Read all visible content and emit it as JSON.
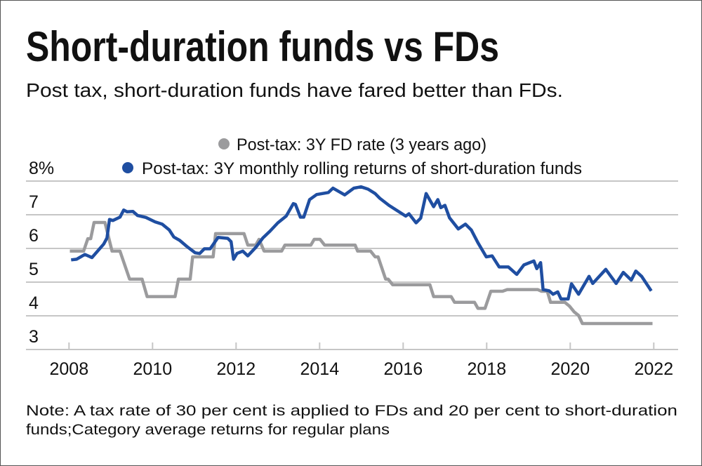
{
  "title": "Short-duration funds vs FDs",
  "subtitle": "Post tax, short-duration funds have fared better than FDs.",
  "note_line1": "Note: A tax rate of 30 per cent is applied to FDs and 20 per cent to short-duration",
  "note_line2": "funds;Category average returns for regular plans",
  "chart_data": {
    "type": "line",
    "title": "Short-duration funds vs FDs",
    "xlabel": "",
    "ylabel": "%",
    "xlim": [
      2008,
      2022
    ],
    "ylim": [
      3,
      8
    ],
    "grid": true,
    "legend_position": "top-center",
    "y_ticks": [
      {
        "v": 8,
        "label": "8%"
      },
      {
        "v": 7,
        "label": "7"
      },
      {
        "v": 6,
        "label": "6"
      },
      {
        "v": 5,
        "label": "5"
      },
      {
        "v": 4,
        "label": "4"
      },
      {
        "v": 3,
        "label": "3"
      }
    ],
    "x_ticks": [
      {
        "v": 2008,
        "label": "2008"
      },
      {
        "v": 2010,
        "label": "2010"
      },
      {
        "v": 2012,
        "label": "2012"
      },
      {
        "v": 2014,
        "label": "2014"
      },
      {
        "v": 2016,
        "label": "2016"
      },
      {
        "v": 2018,
        "label": "2018"
      },
      {
        "v": 2020,
        "label": "2020"
      },
      {
        "v": 2022,
        "label": "2022"
      }
    ],
    "series": [
      {
        "name": "Post-tax: 3Y FD rate (3 years ago)",
        "color": "#9b9b9d",
        "points": [
          [
            2008.02,
            5.92
          ],
          [
            2008.35,
            5.92
          ],
          [
            2008.45,
            6.29
          ],
          [
            2008.52,
            6.29
          ],
          [
            2008.6,
            6.77
          ],
          [
            2008.86,
            6.77
          ],
          [
            2009.03,
            5.92
          ],
          [
            2009.22,
            5.92
          ],
          [
            2009.45,
            5.09
          ],
          [
            2009.75,
            5.09
          ],
          [
            2009.87,
            4.57
          ],
          [
            2010.54,
            4.57
          ],
          [
            2010.62,
            5.09
          ],
          [
            2010.9,
            5.09
          ],
          [
            2010.96,
            5.75
          ],
          [
            2011.45,
            5.75
          ],
          [
            2011.51,
            6.44
          ],
          [
            2012.19,
            6.44
          ],
          [
            2012.28,
            6.1
          ],
          [
            2012.47,
            6.1
          ],
          [
            2012.55,
            6.27
          ],
          [
            2012.67,
            5.92
          ],
          [
            2013.09,
            5.92
          ],
          [
            2013.17,
            6.1
          ],
          [
            2013.79,
            6.1
          ],
          [
            2013.87,
            6.27
          ],
          [
            2014.01,
            6.27
          ],
          [
            2014.12,
            6.1
          ],
          [
            2014.85,
            6.1
          ],
          [
            2014.91,
            5.92
          ],
          [
            2015.22,
            5.92
          ],
          [
            2015.33,
            5.75
          ],
          [
            2015.4,
            5.75
          ],
          [
            2015.58,
            5.09
          ],
          [
            2015.64,
            5.09
          ],
          [
            2015.75,
            4.92
          ],
          [
            2016.64,
            4.92
          ],
          [
            2016.73,
            4.57
          ],
          [
            2017.15,
            4.57
          ],
          [
            2017.23,
            4.4
          ],
          [
            2017.71,
            4.4
          ],
          [
            2017.79,
            4.22
          ],
          [
            2017.96,
            4.22
          ],
          [
            2018.1,
            4.73
          ],
          [
            2018.38,
            4.73
          ],
          [
            2018.49,
            4.78
          ],
          [
            2019.22,
            4.78
          ],
          [
            2019.31,
            4.73
          ],
          [
            2019.45,
            4.73
          ],
          [
            2019.53,
            4.4
          ],
          [
            2019.87,
            4.4
          ],
          [
            2019.98,
            4.29
          ],
          [
            2020.09,
            4.12
          ],
          [
            2020.2,
            4.01
          ],
          [
            2020.29,
            3.77
          ],
          [
            2021.97,
            3.77
          ]
        ]
      },
      {
        "name": "Post-tax: 3Y monthly rolling returns of short-duration funds",
        "color": "#1f4ea1",
        "points": [
          [
            2008.05,
            5.66
          ],
          [
            2008.18,
            5.68
          ],
          [
            2008.38,
            5.82
          ],
          [
            2008.55,
            5.73
          ],
          [
            2008.83,
            6.13
          ],
          [
            2008.91,
            6.31
          ],
          [
            2008.97,
            6.86
          ],
          [
            2009.05,
            6.83
          ],
          [
            2009.22,
            6.93
          ],
          [
            2009.31,
            7.14
          ],
          [
            2009.39,
            7.09
          ],
          [
            2009.53,
            7.1
          ],
          [
            2009.64,
            6.98
          ],
          [
            2009.84,
            6.92
          ],
          [
            2010.06,
            6.79
          ],
          [
            2010.23,
            6.72
          ],
          [
            2010.4,
            6.55
          ],
          [
            2010.51,
            6.34
          ],
          [
            2010.65,
            6.24
          ],
          [
            2010.82,
            6.06
          ],
          [
            2011.02,
            5.87
          ],
          [
            2011.13,
            5.85
          ],
          [
            2011.24,
            5.99
          ],
          [
            2011.38,
            5.99
          ],
          [
            2011.57,
            6.33
          ],
          [
            2011.8,
            6.3
          ],
          [
            2011.88,
            6.2
          ],
          [
            2011.94,
            5.68
          ],
          [
            2012.02,
            5.85
          ],
          [
            2012.16,
            5.92
          ],
          [
            2012.28,
            5.78
          ],
          [
            2012.47,
            6.03
          ],
          [
            2012.64,
            6.31
          ],
          [
            2012.81,
            6.51
          ],
          [
            2013.0,
            6.76
          ],
          [
            2013.2,
            6.96
          ],
          [
            2013.37,
            7.33
          ],
          [
            2013.42,
            7.31
          ],
          [
            2013.54,
            6.93
          ],
          [
            2013.62,
            6.93
          ],
          [
            2013.76,
            7.45
          ],
          [
            2013.93,
            7.6
          ],
          [
            2014.21,
            7.66
          ],
          [
            2014.32,
            7.79
          ],
          [
            2014.6,
            7.59
          ],
          [
            2014.82,
            7.79
          ],
          [
            2014.99,
            7.83
          ],
          [
            2015.16,
            7.76
          ],
          [
            2015.33,
            7.63
          ],
          [
            2015.44,
            7.49
          ],
          [
            2015.66,
            7.28
          ],
          [
            2016.06,
            6.96
          ],
          [
            2016.14,
            7.03
          ],
          [
            2016.31,
            6.76
          ],
          [
            2016.42,
            6.9
          ],
          [
            2016.55,
            7.63
          ],
          [
            2016.73,
            7.24
          ],
          [
            2016.83,
            7.45
          ],
          [
            2016.9,
            7.21
          ],
          [
            2017.0,
            7.28
          ],
          [
            2017.11,
            6.91
          ],
          [
            2017.32,
            6.58
          ],
          [
            2017.49,
            6.72
          ],
          [
            2017.63,
            6.55
          ],
          [
            2017.79,
            6.17
          ],
          [
            2017.99,
            5.75
          ],
          [
            2018.13,
            5.78
          ],
          [
            2018.3,
            5.45
          ],
          [
            2018.52,
            5.45
          ],
          [
            2018.72,
            5.23
          ],
          [
            2018.89,
            5.51
          ],
          [
            2019.13,
            5.63
          ],
          [
            2019.2,
            5.4
          ],
          [
            2019.29,
            5.58
          ],
          [
            2019.35,
            4.78
          ],
          [
            2019.5,
            4.74
          ],
          [
            2019.59,
            4.64
          ],
          [
            2019.7,
            4.71
          ],
          [
            2019.78,
            4.5
          ],
          [
            2019.95,
            4.5
          ],
          [
            2020.03,
            4.95
          ],
          [
            2020.2,
            4.64
          ],
          [
            2020.45,
            5.17
          ],
          [
            2020.54,
            4.96
          ],
          [
            2020.85,
            5.38
          ],
          [
            2021.1,
            4.96
          ],
          [
            2021.27,
            5.29
          ],
          [
            2021.46,
            5.06
          ],
          [
            2021.57,
            5.33
          ],
          [
            2021.71,
            5.17
          ],
          [
            2021.94,
            4.74
          ]
        ]
      }
    ]
  }
}
